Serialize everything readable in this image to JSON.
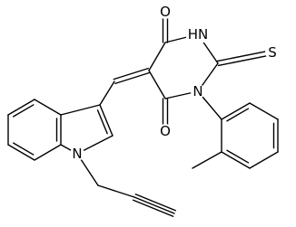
{
  "atom_labels": [
    "O",
    "HN",
    "S",
    "N",
    "O",
    "N"
  ]
}
